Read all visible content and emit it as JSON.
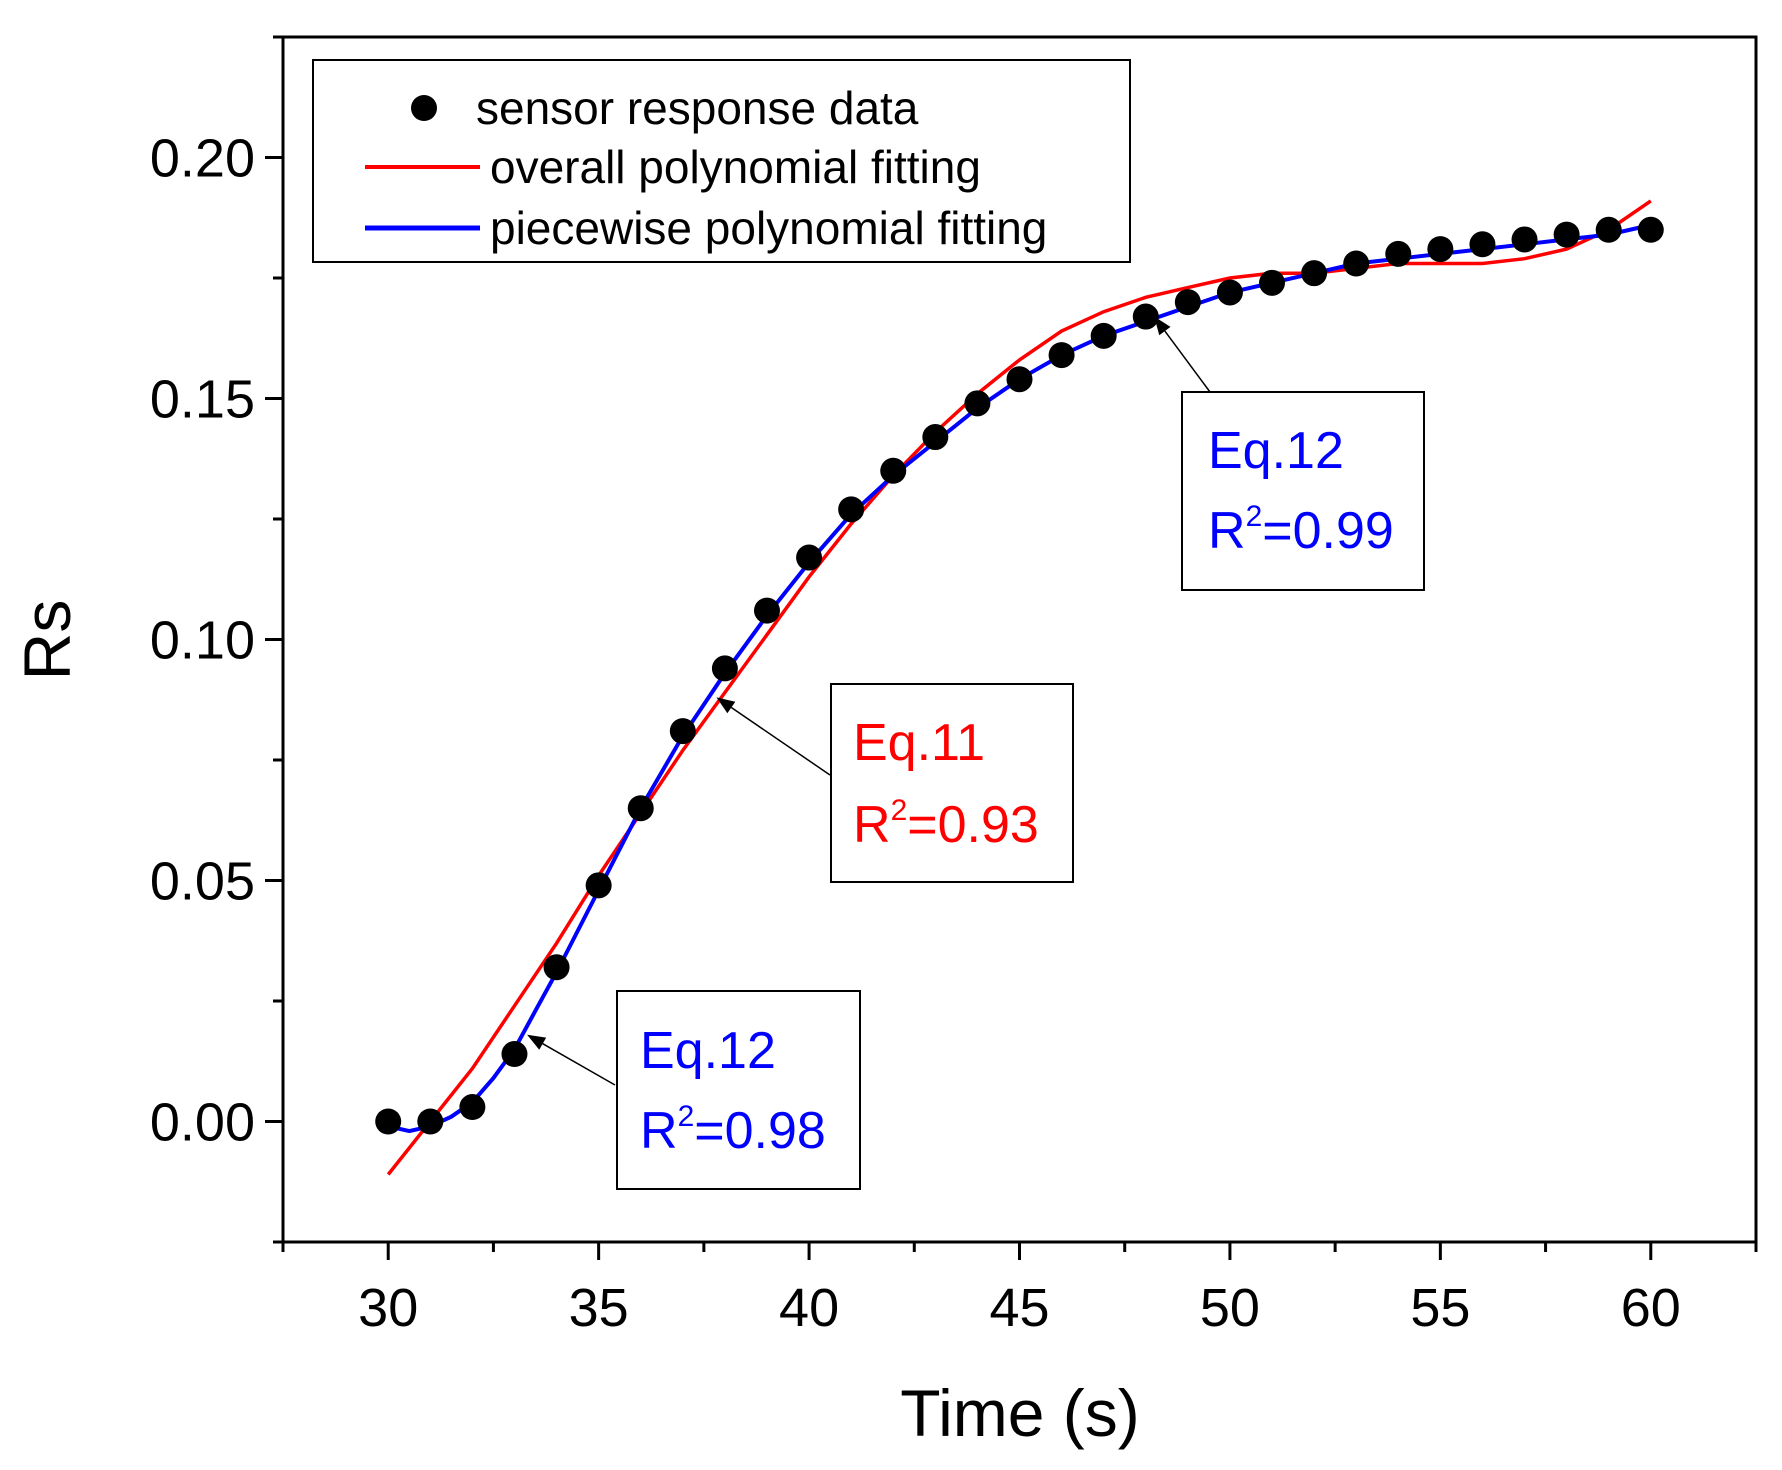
{
  "chart_data": {
    "type": "scatter",
    "xlabel": "Time (s)",
    "ylabel": "Rs",
    "xlim": [
      27.5,
      62.5
    ],
    "ylim": [
      -0.025,
      0.225
    ],
    "xticks": [
      30,
      35,
      40,
      45,
      50,
      55,
      60
    ],
    "xtick_labels": [
      "30",
      "35",
      "40",
      "45",
      "50",
      "55",
      "60"
    ],
    "yticks": [
      0.0,
      0.05,
      0.1,
      0.15,
      0.2
    ],
    "ytick_labels": [
      "0.00",
      "0.05",
      "0.10",
      "0.15",
      "0.20"
    ],
    "grid": false,
    "legend_position": "top-left",
    "series": [
      {
        "name": "sensor response data",
        "kind": "markers",
        "color": "#000000",
        "x": [
          30,
          31,
          32,
          33,
          34,
          35,
          36,
          37,
          38,
          39,
          40,
          41,
          42,
          43,
          44,
          45,
          46,
          47,
          48,
          49,
          50,
          51,
          52,
          53,
          54,
          55,
          56,
          57,
          58,
          59,
          60
        ],
        "y": [
          0.0,
          0.0,
          0.003,
          0.014,
          0.032,
          0.049,
          0.065,
          0.081,
          0.094,
          0.106,
          0.117,
          0.127,
          0.135,
          0.142,
          0.149,
          0.154,
          0.159,
          0.163,
          0.167,
          0.17,
          0.172,
          0.174,
          0.176,
          0.178,
          0.18,
          0.181,
          0.182,
          0.183,
          0.184,
          0.185,
          0.185
        ]
      },
      {
        "name": "overall polynomial fitting",
        "kind": "line",
        "color": "#ff0000",
        "x": [
          30,
          31,
          32,
          33,
          34,
          35,
          36,
          37,
          38,
          39,
          40,
          41,
          42,
          43,
          44,
          45,
          46,
          47,
          48,
          49,
          50,
          51,
          52,
          53,
          54,
          55,
          56,
          57,
          58,
          59,
          60
        ],
        "y": [
          -0.011,
          0.0,
          0.011,
          0.024,
          0.037,
          0.051,
          0.064,
          0.077,
          0.089,
          0.101,
          0.113,
          0.124,
          0.134,
          0.143,
          0.151,
          0.158,
          0.164,
          0.168,
          0.171,
          0.173,
          0.175,
          0.176,
          0.176,
          0.177,
          0.178,
          0.178,
          0.178,
          0.179,
          0.181,
          0.185,
          0.191
        ]
      },
      {
        "name": "piecewise polynomial fitting",
        "kind": "line",
        "color": "#0000ff",
        "x": [
          30,
          30.5,
          31,
          31.5,
          32,
          32.5,
          33,
          33.5,
          34,
          35,
          36,
          37,
          38,
          39,
          40,
          41,
          42,
          43,
          44,
          45,
          46,
          47,
          48,
          49,
          50,
          51,
          52,
          53,
          54,
          55,
          56,
          57,
          58,
          59,
          60
        ],
        "y": [
          -0.001,
          -0.002,
          -0.001,
          0.001,
          0.004,
          0.009,
          0.015,
          0.023,
          0.031,
          0.048,
          0.065,
          0.08,
          0.093,
          0.105,
          0.116,
          0.126,
          0.134,
          0.141,
          0.148,
          0.154,
          0.159,
          0.163,
          0.166,
          0.169,
          0.172,
          0.174,
          0.176,
          0.178,
          0.179,
          0.18,
          0.181,
          0.182,
          0.183,
          0.184,
          0.186
        ]
      }
    ],
    "annotations": [
      {
        "id": "low",
        "eq": "Eq.12",
        "r2_prefix": "R",
        "r2_sup": "2",
        "r2_value": "=0.98",
        "color": "#0000ff",
        "arrow_to": [
          33.3,
          0.018
        ]
      },
      {
        "id": "mid",
        "eq": "Eq.11",
        "r2_prefix": "R",
        "r2_sup": "2",
        "r2_value": "=0.93",
        "color": "#ff0000",
        "arrow_to": [
          37.8,
          0.088
        ]
      },
      {
        "id": "high",
        "eq": "Eq.12",
        "r2_prefix": "R",
        "r2_sup": "2",
        "r2_value": "=0.99",
        "color": "#0000ff",
        "arrow_to": [
          48.2,
          0.167
        ]
      }
    ]
  }
}
